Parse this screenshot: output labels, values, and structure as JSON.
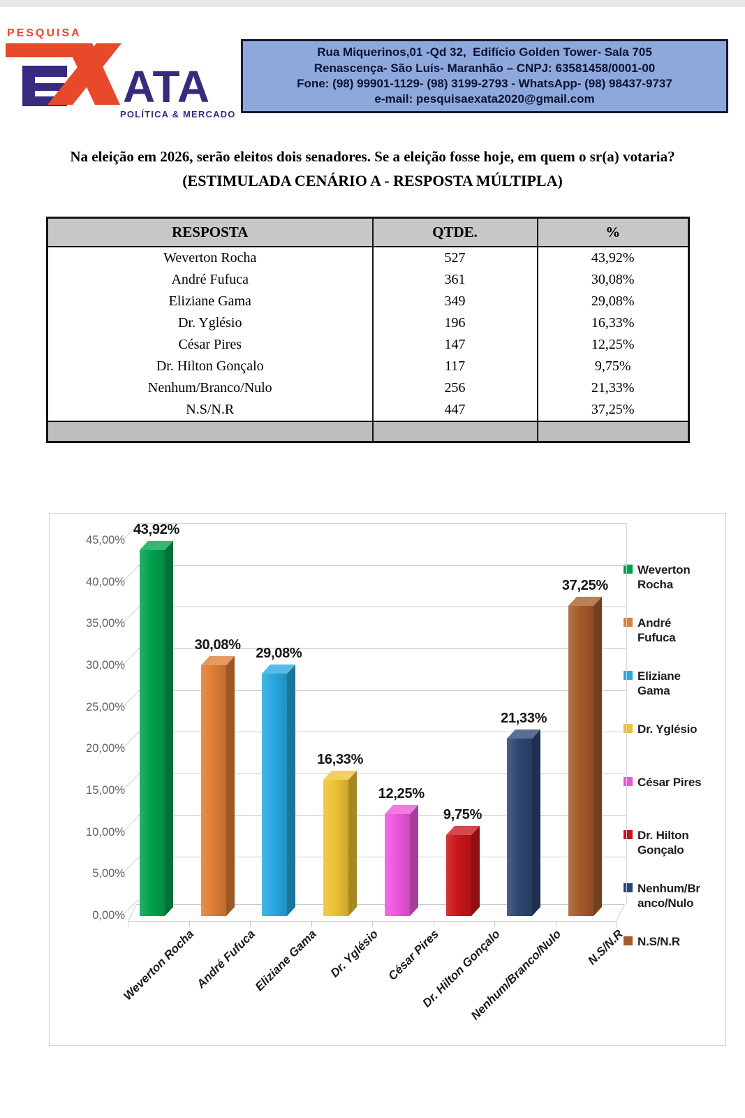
{
  "header": {
    "logo": {
      "top_text": "PESQUISA",
      "main_text": "ATA",
      "sub_text": "POLÍTICA & MERCADO",
      "orange": "#e8492b",
      "purple": "#372b7f"
    },
    "contact_lines": [
      "Rua Miquerinos,01 -Qd 32,  Edifício Golden Tower- Sala 705",
      "Renascença- São Luís- Maranhão – CNPJ: 63581458/0001-00",
      "Fone: (98) 99901-1129- (98) 3199-2793 - WhatsApp- (98) 98437-9737",
      "e-mail: pesquisaexata2020@gmail.com"
    ],
    "contact_bg": "#8da8dc"
  },
  "question": {
    "line1": "Na eleição em 2026, serão eleitos dois senadores. Se a eleição fosse hoje, em quem o sr(a) votaria?",
    "line2": "(ESTIMULADA CENÁRIO A - RESPOSTA MÚLTIPLA)"
  },
  "table": {
    "headers": [
      "RESPOSTA",
      "QTDE.",
      "%"
    ],
    "rows": [
      [
        "Weverton Rocha",
        "527",
        "43,92%"
      ],
      [
        "André Fufuca",
        "361",
        "30,08%"
      ],
      [
        "Eliziane Gama",
        "349",
        "29,08%"
      ],
      [
        "Dr. Yglésio",
        "196",
        "16,33%"
      ],
      [
        "César Pires",
        "147",
        "12,25%"
      ],
      [
        "Dr. Hilton Gonçalo",
        "117",
        "9,75%"
      ],
      [
        "Nenhum/Branco/Nulo",
        "256",
        "21,33%"
      ],
      [
        "N.S/N.R",
        "447",
        "37,25%"
      ]
    ],
    "header_bg": "#c7c7c7",
    "footer_bg": "#bdbdbd"
  },
  "chart_data": {
    "type": "bar",
    "bar_style": "3d",
    "title": "",
    "xlabel": "",
    "ylabel": "",
    "categories": [
      "Weverton Rocha",
      "André Fufuca",
      "Eliziane Gama",
      "Dr. Yglésio",
      "César Pires",
      "Dr. Hilton Gonçalo",
      "Nenhum/Branco/Nulo",
      "N.S/N.R"
    ],
    "values": [
      43.92,
      30.08,
      29.08,
      16.33,
      12.25,
      9.75,
      21.33,
      37.25
    ],
    "value_labels": [
      "43,92%",
      "30,08%",
      "29,08%",
      "16,33%",
      "12,25%",
      "9,75%",
      "21,33%",
      "37,25%"
    ],
    "point_colors": [
      "#00a14d",
      "#de7e35",
      "#27a8e0",
      "#edc233",
      "#ee55dd",
      "#c91518",
      "#2c4672",
      "#a55a2b"
    ],
    "y_ticks": {
      "values": [
        45,
        40,
        35,
        30,
        25,
        20,
        15,
        10,
        5,
        0
      ],
      "labels": [
        "45,00%",
        "40,00%",
        "35,00%",
        "30,00%",
        "25,00%",
        "20,00%",
        "15,00%",
        "10,00%",
        "5,00%",
        "0,00%"
      ]
    },
    "ylim": [
      0,
      45
    ],
    "grid": true,
    "legend_position": "right"
  }
}
